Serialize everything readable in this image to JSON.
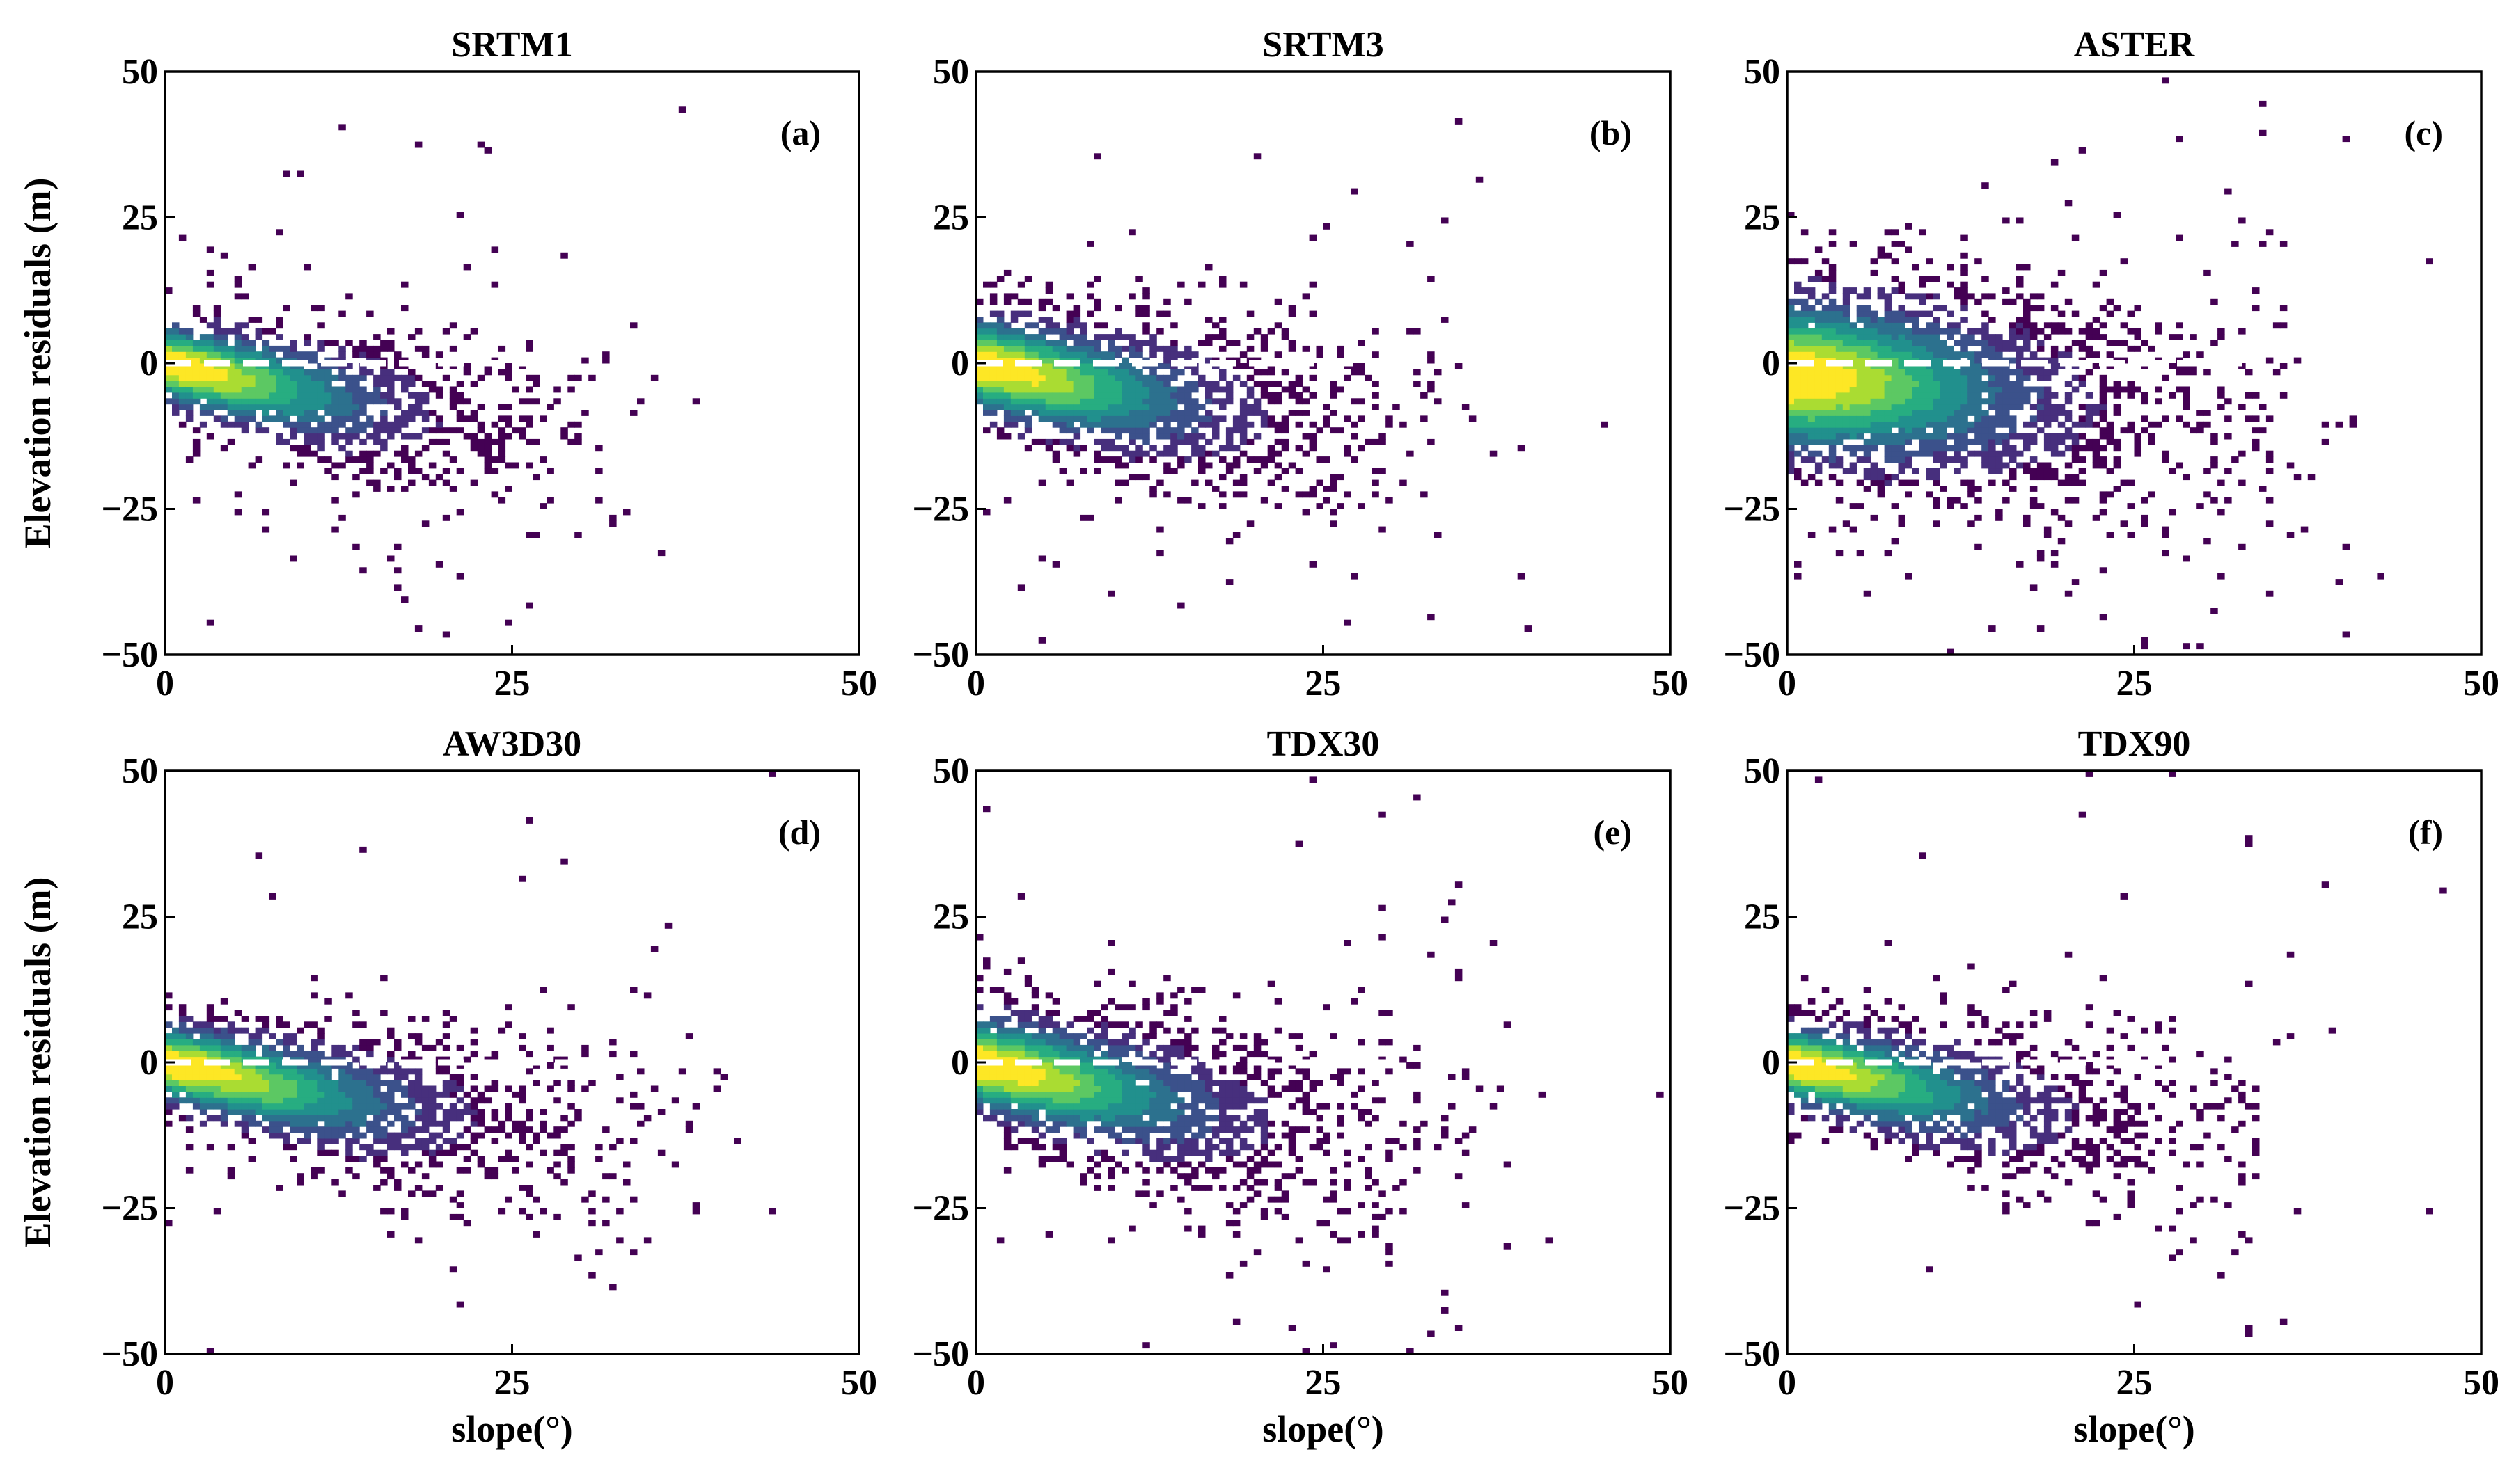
{
  "colors": {
    "axes": "#000000",
    "zero_line": "#ffffff",
    "colormap_viridis": [
      "#440154",
      "#472f7d",
      "#3b518b",
      "#2c718e",
      "#21908d",
      "#27ad81",
      "#5cc863",
      "#aadc32",
      "#fde725"
    ]
  },
  "chart_data": [
    {
      "type": "heatmap",
      "subtype": "scatter-density",
      "title": "SRTM1",
      "panel_label": "(a)",
      "xlabel": "",
      "ylabel": "Elevation residuals (m)",
      "xlim": [
        0,
        50
      ],
      "ylim": [
        -50,
        50
      ],
      "xticks": [
        0,
        25,
        50
      ],
      "xtick_labels": [
        "0",
        "25",
        "50"
      ],
      "yticks": [
        50,
        25,
        0,
        -25,
        -50
      ],
      "ytick_labels": [
        "50",
        "25",
        "0",
        "−25",
        "−50"
      ],
      "reference_line": {
        "y": 0,
        "x_range": [
          0,
          30
        ],
        "style": "dashed"
      },
      "density": {
        "peak_slope": 1.5,
        "mean_trend": [
          [
            0,
            0
          ],
          [
            10,
            -5
          ],
          [
            20,
            -9
          ],
          [
            30,
            -12
          ]
        ],
        "spread_sd": [
          [
            0,
            5
          ],
          [
            20,
            8
          ],
          [
            35,
            9
          ]
        ],
        "x_max_dense": 32
      }
    },
    {
      "type": "heatmap",
      "subtype": "scatter-density",
      "title": "SRTM3",
      "panel_label": "(b)",
      "xlabel": "",
      "ylabel": "",
      "xlim": [
        0,
        50
      ],
      "ylim": [
        -50,
        50
      ],
      "xticks": [
        0,
        25,
        50
      ],
      "xtick_labels": [
        "0",
        "25",
        "50"
      ],
      "yticks": [
        50,
        25,
        0,
        -25,
        -50
      ],
      "ytick_labels": [
        "50",
        "25",
        "0",
        "−25",
        "−50"
      ],
      "reference_line": {
        "y": 0,
        "x_range": [
          0,
          30
        ],
        "style": "dashed"
      },
      "density": {
        "peak_slope": 1.5,
        "mean_trend": [
          [
            0,
            0
          ],
          [
            10,
            -5
          ],
          [
            20,
            -9
          ],
          [
            30,
            -11
          ]
        ],
        "spread_sd": [
          [
            0,
            6
          ],
          [
            20,
            9
          ],
          [
            35,
            10
          ]
        ],
        "x_max_dense": 34
      }
    },
    {
      "type": "heatmap",
      "subtype": "scatter-density",
      "title": "ASTER",
      "panel_label": "(c)",
      "xlabel": "",
      "ylabel": "",
      "xlim": [
        0,
        50
      ],
      "ylim": [
        -50,
        50
      ],
      "xticks": [
        0,
        25,
        50
      ],
      "xtick_labels": [
        "0",
        "25",
        "50"
      ],
      "yticks": [
        50,
        25,
        0,
        -25,
        -50
      ],
      "ytick_labels": [
        "50",
        "25",
        "0",
        "−25",
        "−50"
      ],
      "reference_line": {
        "y": 0,
        "x_range": [
          0,
          33
        ],
        "style": "dashed"
      },
      "density": {
        "peak_slope": 1.5,
        "mean_trend": [
          [
            0,
            -2
          ],
          [
            10,
            -4
          ],
          [
            20,
            -7
          ],
          [
            30,
            -8
          ]
        ],
        "spread_sd": [
          [
            0,
            10
          ],
          [
            20,
            11
          ],
          [
            35,
            12
          ]
        ],
        "x_max_dense": 36
      }
    },
    {
      "type": "heatmap",
      "subtype": "scatter-density",
      "title": "AW3D30",
      "panel_label": "(d)",
      "xlabel": "slope(°)",
      "ylabel": "Elevation residuals (m)",
      "xlim": [
        0,
        50
      ],
      "ylim": [
        -50,
        50
      ],
      "xticks": [
        0,
        25,
        50
      ],
      "xtick_labels": [
        "0",
        "25",
        "50"
      ],
      "yticks": [
        50,
        25,
        0,
        -25,
        -50
      ],
      "ytick_labels": [
        "50",
        "25",
        "0",
        "−25",
        "−50"
      ],
      "reference_line": {
        "y": 0,
        "x_range": [
          0,
          30
        ],
        "style": "dashed"
      },
      "density": {
        "peak_slope": 2,
        "mean_trend": [
          [
            0,
            0
          ],
          [
            10,
            -5
          ],
          [
            20,
            -9
          ],
          [
            30,
            -12
          ]
        ],
        "spread_sd": [
          [
            0,
            5
          ],
          [
            20,
            8
          ],
          [
            35,
            9
          ]
        ],
        "x_max_dense": 36
      }
    },
    {
      "type": "heatmap",
      "subtype": "scatter-density",
      "title": "TDX30",
      "panel_label": "(e)",
      "xlabel": "slope(°)",
      "ylabel": "",
      "xlim": [
        0,
        50
      ],
      "ylim": [
        -50,
        50
      ],
      "xticks": [
        0,
        25,
        50
      ],
      "xtick_labels": [
        "0",
        "25",
        "50"
      ],
      "yticks": [
        50,
        25,
        0,
        -25,
        -50
      ],
      "ytick_labels": [
        "50",
        "25",
        "0",
        "−25",
        "−50"
      ],
      "reference_line": {
        "y": 0,
        "x_range": [
          0,
          30
        ],
        "style": "dashed"
      },
      "density": {
        "peak_slope": 1.5,
        "mean_trend": [
          [
            0,
            0
          ],
          [
            10,
            -5
          ],
          [
            20,
            -10
          ],
          [
            30,
            -13
          ]
        ],
        "spread_sd": [
          [
            0,
            6
          ],
          [
            20,
            9
          ],
          [
            35,
            10
          ]
        ],
        "x_max_dense": 35
      }
    },
    {
      "type": "heatmap",
      "subtype": "scatter-density",
      "title": "TDX90",
      "panel_label": "(f)",
      "xlabel": "slope(°)",
      "ylabel": "",
      "xlim": [
        0,
        50
      ],
      "ylim": [
        -50,
        50
      ],
      "xticks": [
        0,
        25,
        50
      ],
      "xtick_labels": [
        "0",
        "25",
        "50"
      ],
      "yticks": [
        50,
        25,
        0,
        -25,
        -50
      ],
      "ytick_labels": [
        "50",
        "25",
        "0",
        "−25",
        "−50"
      ],
      "reference_line": {
        "y": 0,
        "x_range": [
          0,
          30
        ],
        "style": "dashed"
      },
      "density": {
        "peak_slope": 1.5,
        "mean_trend": [
          [
            0,
            0
          ],
          [
            10,
            -5
          ],
          [
            20,
            -9
          ],
          [
            30,
            -12
          ]
        ],
        "spread_sd": [
          [
            0,
            5
          ],
          [
            20,
            8
          ],
          [
            35,
            9
          ]
        ],
        "x_max_dense": 34
      }
    }
  ]
}
